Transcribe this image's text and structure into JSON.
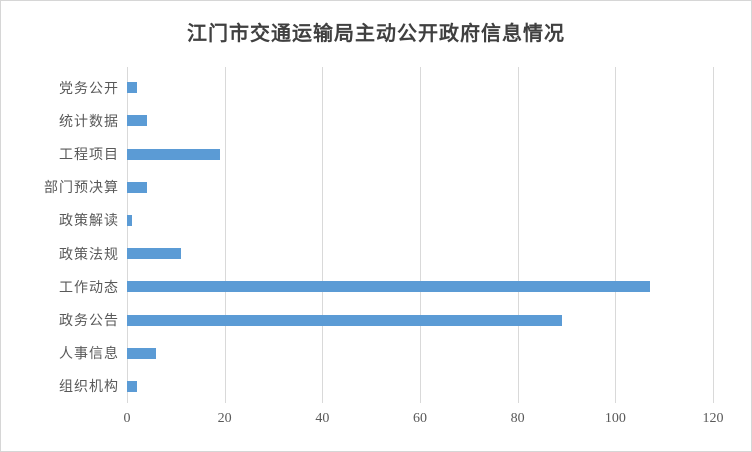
{
  "chart_data": {
    "type": "bar",
    "orientation": "horizontal",
    "title": "江门市交通运输局主动公开政府信息情况",
    "categories": [
      "党务公开",
      "统计数据",
      "工程项目",
      "部门预决算",
      "政策解读",
      "政策法规",
      "工作动态",
      "政务公告",
      "人事信息",
      "组织机构"
    ],
    "values": [
      2,
      4,
      19,
      4,
      1,
      11,
      107,
      89,
      6,
      2
    ],
    "xlabel": "",
    "ylabel": "",
    "xlim": [
      0,
      120
    ],
    "xticks": [
      0,
      20,
      40,
      60,
      80,
      100,
      120
    ],
    "grid": "vertical-gridlines-on",
    "legend": "none",
    "colors": {
      "bar": "#5b9bd5",
      "gridline": "#d9d9d9",
      "axis_line": "#d9d9d9",
      "tick_label": "#595959",
      "category_label": "#595959",
      "title": "#404040",
      "background": "#ffffff",
      "frame_border": "#d6d6d6"
    }
  }
}
